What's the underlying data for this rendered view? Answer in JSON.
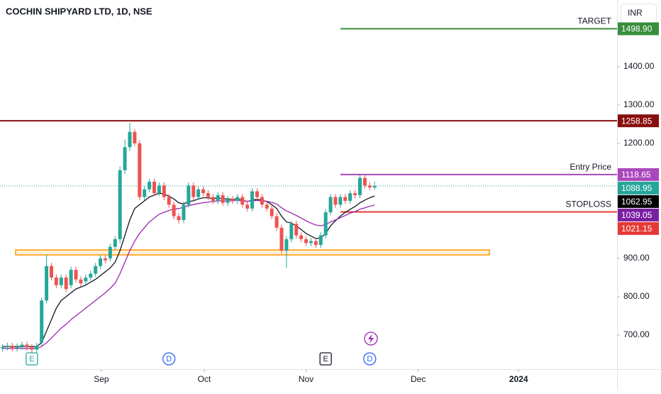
{
  "chart_data": {
    "type": "candlestick",
    "title": "COCHIN SHIPYARD LTD, 1D, NSE",
    "currency": "INR",
    "up_color": "#26a69a",
    "down_color": "#ef5350",
    "open": [
      665,
      668,
      672,
      665,
      670,
      675,
      668,
      662,
      680,
      790,
      880,
      850,
      830,
      850,
      830,
      870,
      845,
      840,
      850,
      860,
      880,
      900,
      900,
      930,
      950,
      1130,
      1190,
      1230,
      1200,
      1060,
      1080,
      1100,
      1070,
      1090,
      1060,
      1040,
      1010,
      1000,
      1040,
      1090,
      1060,
      1080,
      1070,
      1060,
      1050,
      1065,
      1045,
      1055,
      1050,
      1060,
      1040,
      1030,
      1075,
      1060,
      1040,
      1030,
      1010,
      980,
      920,
      950,
      990,
      960,
      950,
      940,
      945,
      935,
      960,
      1020,
      1060,
      1040,
      1060,
      1050,
      1070,
      1065,
      1110,
      1090,
      1085
    ],
    "high": [
      676,
      680,
      680,
      678,
      683,
      683,
      676,
      680,
      798,
      910,
      888,
      858,
      858,
      858,
      878,
      878,
      853,
      858,
      868,
      888,
      908,
      908,
      938,
      958,
      1140,
      1210,
      1254,
      1238,
      1208,
      1088,
      1108,
      1108,
      1098,
      1098,
      1068,
      1048,
      1018,
      1048,
      1098,
      1098,
      1088,
      1088,
      1078,
      1068,
      1073,
      1073,
      1063,
      1063,
      1068,
      1068,
      1048,
      1083,
      1083,
      1068,
      1048,
      1038,
      1018,
      988,
      958,
      998,
      998,
      968,
      958,
      953,
      953,
      968,
      1028,
      1068,
      1068,
      1068,
      1068,
      1078,
      1078,
      1118,
      1118,
      1098,
      1100
    ],
    "low": [
      657,
      660,
      657,
      657,
      662,
      660,
      654,
      654,
      672,
      782,
      842,
      822,
      822,
      812,
      822,
      837,
      827,
      832,
      842,
      852,
      872,
      887,
      892,
      922,
      940,
      1120,
      1180,
      1192,
      1052,
      1052,
      1072,
      1062,
      1062,
      1052,
      1032,
      1002,
      990,
      992,
      1032,
      1052,
      1052,
      1062,
      1052,
      1042,
      1042,
      1037,
      1037,
      1042,
      1042,
      1032,
      1022,
      1022,
      1052,
      1032,
      1022,
      1002,
      972,
      912,
      875,
      942,
      952,
      942,
      932,
      932,
      927,
      927,
      952,
      1012,
      1032,
      1032,
      1042,
      1042,
      1057,
      1057,
      1082,
      1077,
      1078
    ],
    "close": [
      668,
      672,
      665,
      670,
      675,
      668,
      662,
      672,
      790,
      880,
      850,
      830,
      850,
      820,
      870,
      845,
      835,
      850,
      860,
      880,
      900,
      895,
      930,
      950,
      1130,
      1190,
      1230,
      1200,
      1060,
      1080,
      1100,
      1070,
      1090,
      1060,
      1040,
      1010,
      1000,
      1040,
      1090,
      1060,
      1080,
      1070,
      1060,
      1050,
      1065,
      1045,
      1055,
      1050,
      1060,
      1040,
      1030,
      1075,
      1060,
      1040,
      1030,
      1010,
      980,
      920,
      950,
      990,
      960,
      950,
      940,
      945,
      935,
      960,
      1020,
      1060,
      1040,
      1060,
      1050,
      1070,
      1065,
      1110,
      1090,
      1085,
      1088.95
    ],
    "series": [
      {
        "color": "#131722",
        "values": [
          670,
          670,
          670,
          670,
          670,
          670,
          670,
          670,
          680,
          710,
          740,
          770,
          790,
          800,
          810,
          820,
          825,
          830,
          838,
          845,
          855,
          865,
          875,
          890,
          920,
          960,
          1000,
          1030,
          1040,
          1050,
          1060,
          1065,
          1070,
          1068,
          1062,
          1055,
          1045,
          1042,
          1048,
          1050,
          1055,
          1058,
          1058,
          1056,
          1058,
          1055,
          1055,
          1054,
          1055,
          1052,
          1048,
          1052,
          1054,
          1052,
          1048,
          1040,
          1030,
          1010,
          995,
          992,
          985,
          975,
          965,
          958,
          952,
          953,
          965,
          985,
          998,
          1010,
          1020,
          1028,
          1035,
          1045,
          1052,
          1058,
          1062.95
        ]
      },
      {
        "color": "#9c27b0",
        "values": [
          665,
          665,
          665,
          665,
          665,
          665,
          665,
          665,
          670,
          680,
          692,
          705,
          718,
          728,
          740,
          750,
          760,
          770,
          780,
          790,
          800,
          810,
          822,
          835,
          860,
          890,
          920,
          945,
          965,
          980,
          995,
          1005,
          1015,
          1020,
          1025,
          1028,
          1030,
          1033,
          1038,
          1040,
          1043,
          1045,
          1047,
          1048,
          1050,
          1050,
          1050,
          1050,
          1051,
          1050,
          1049,
          1050,
          1051,
          1050,
          1049,
          1046,
          1042,
          1032,
          1024,
          1018,
          1012,
          1005,
          998,
          992,
          987,
          985,
          988,
          995,
          1000,
          1006,
          1012,
          1018,
          1022,
          1028,
          1032,
          1036,
          1039.05
        ]
      }
    ],
    "levels": [
      {
        "name": "TARGET",
        "value": 1498.9,
        "label": "1498.90",
        "color": "#388e3c"
      },
      {
        "value": 1258.85,
        "label": "1258.85",
        "color": "#880e0e"
      },
      {
        "name": "Entry Price",
        "value": 1118.65,
        "label": "1118.65",
        "color": "#ab47bc"
      },
      {
        "name": "STOPLOSS",
        "value": 1021.15,
        "label": "1021.15",
        "color": "#e53935"
      }
    ],
    "price_labels": [
      {
        "value": 1088.95,
        "label": "1088.95",
        "color": "#26a69a"
      },
      {
        "value": 1062.95,
        "label": "1062.95",
        "color": "#000000"
      },
      {
        "value": 1039.05,
        "label": "1039.05",
        "color": "#7b1fa2"
      }
    ],
    "zone": {
      "from": 909,
      "to": 922,
      "color": "#ff9800"
    },
    "events": [
      {
        "label": "E",
        "x": 6,
        "color": "#26a69a"
      },
      {
        "label": "D",
        "x": 34,
        "color": "#2962ff"
      },
      {
        "label": "E",
        "x": 66,
        "color": "#131722"
      },
      {
        "label": "D",
        "x": 75,
        "color": "#2962ff"
      }
    ],
    "xlim": [
      -0.5,
      125.5
    ],
    "xticks": [
      {
        "value": 20.2,
        "label": "Sep"
      },
      {
        "value": 41.2,
        "label": "Oct"
      },
      {
        "value": 62,
        "label": "Nov"
      },
      {
        "value": 84.9,
        "label": "Dec"
      },
      {
        "value": 105.4,
        "label": "2024"
      }
    ],
    "ylim": [
      611,
      1574
    ],
    "yticks": [
      {
        "value": 700,
        "label": "700.00"
      },
      {
        "value": 800,
        "label": "800.00"
      },
      {
        "value": 900,
        "label": "900.00"
      },
      {
        "value": 1200,
        "label": "1200.00"
      },
      {
        "value": 1300,
        "label": "1300.00"
      },
      {
        "value": 1400,
        "label": "1400.00"
      }
    ]
  }
}
